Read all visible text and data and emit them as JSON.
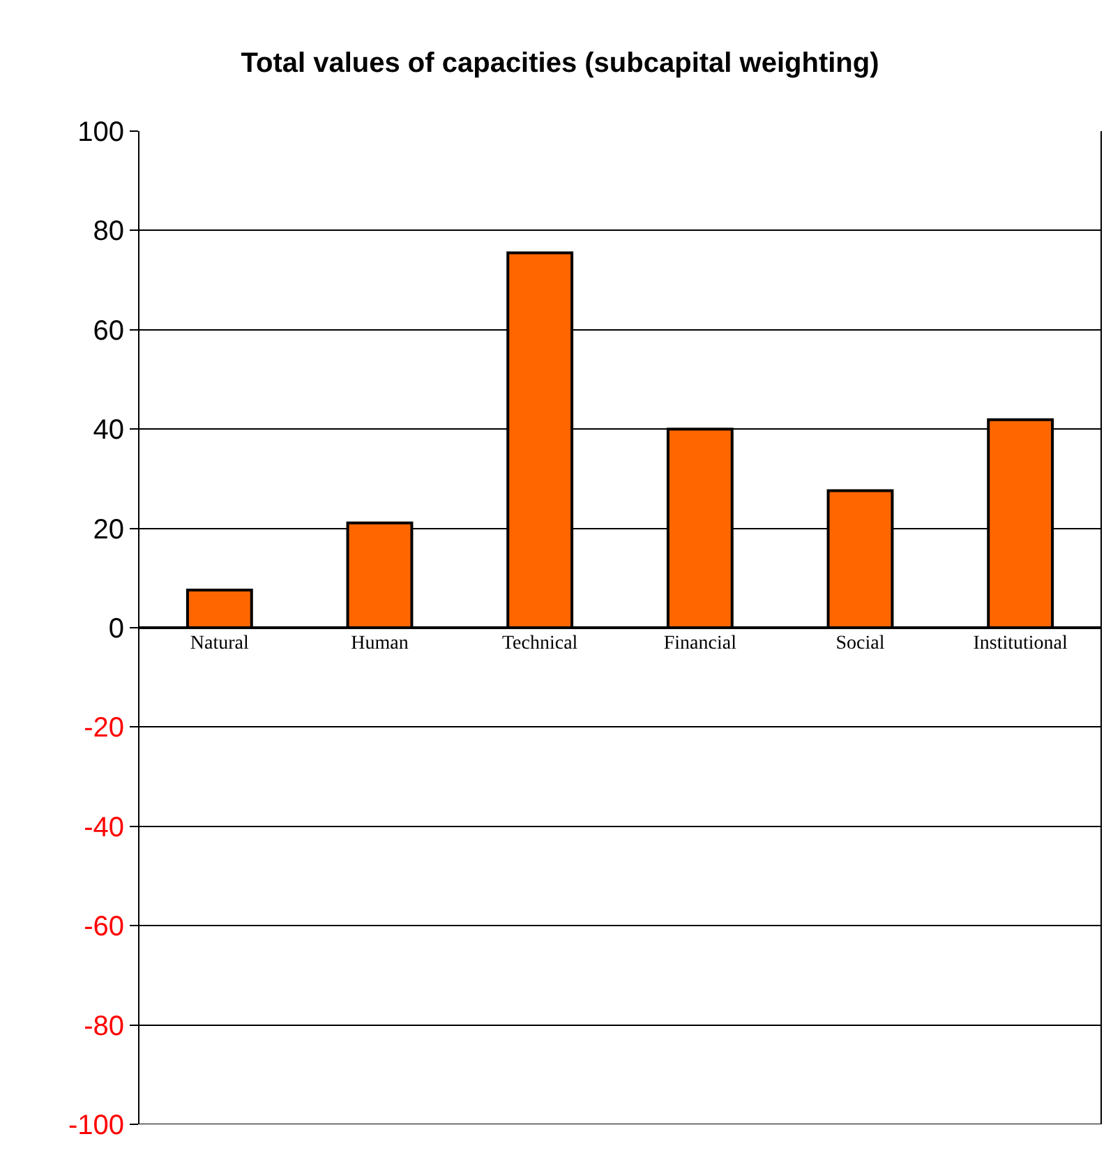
{
  "chart_data": {
    "type": "bar",
    "title": "Total values of capacities (subcapital weighting)",
    "categories": [
      "Natural",
      "Human",
      "Technical",
      "Financial",
      "Social",
      "Institutional"
    ],
    "values": [
      7.6,
      21.1,
      75.5,
      40,
      27.6,
      41.9
    ],
    "color": "#ff6600",
    "ylim": [
      -100,
      100
    ],
    "yticks": [
      -100,
      -80,
      -60,
      -40,
      -20,
      0,
      20,
      40,
      60,
      80,
      100
    ],
    "grid": "y"
  }
}
